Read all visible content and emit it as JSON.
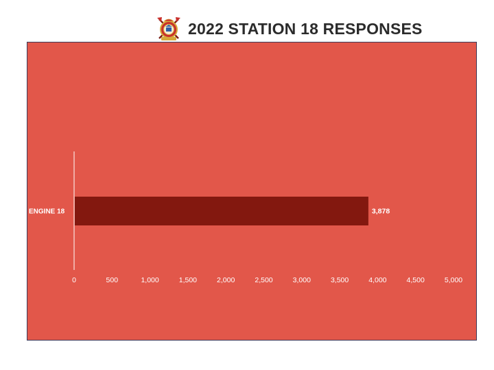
{
  "header": {
    "title": "2022 STATION 18 RESPONSES",
    "logo_icon": "fire-department-emblem-icon"
  },
  "colors": {
    "plot_background": "#e2574a",
    "bar_fill": "#83180f",
    "text": "#ffffff",
    "axis_line": "#ffffff",
    "title_text": "#2b2b2b"
  },
  "chart_data": {
    "type": "bar",
    "orientation": "horizontal",
    "title": "2022 STATION 18 RESPONSES",
    "categories": [
      "ENGINE 18"
    ],
    "values": [
      3878
    ],
    "data_labels": [
      "3,878"
    ],
    "xlabel": "",
    "ylabel": "",
    "xlim": [
      0,
      5000
    ],
    "xticks": [
      0,
      500,
      1000,
      1500,
      2000,
      2500,
      3000,
      3500,
      4000,
      4500,
      5000
    ],
    "xtick_labels": [
      "0",
      "500",
      "1,000",
      "1,500",
      "2,000",
      "2,500",
      "3,000",
      "3,500",
      "4,000",
      "4,500",
      "5,000"
    ],
    "grid": false,
    "legend": "none"
  }
}
